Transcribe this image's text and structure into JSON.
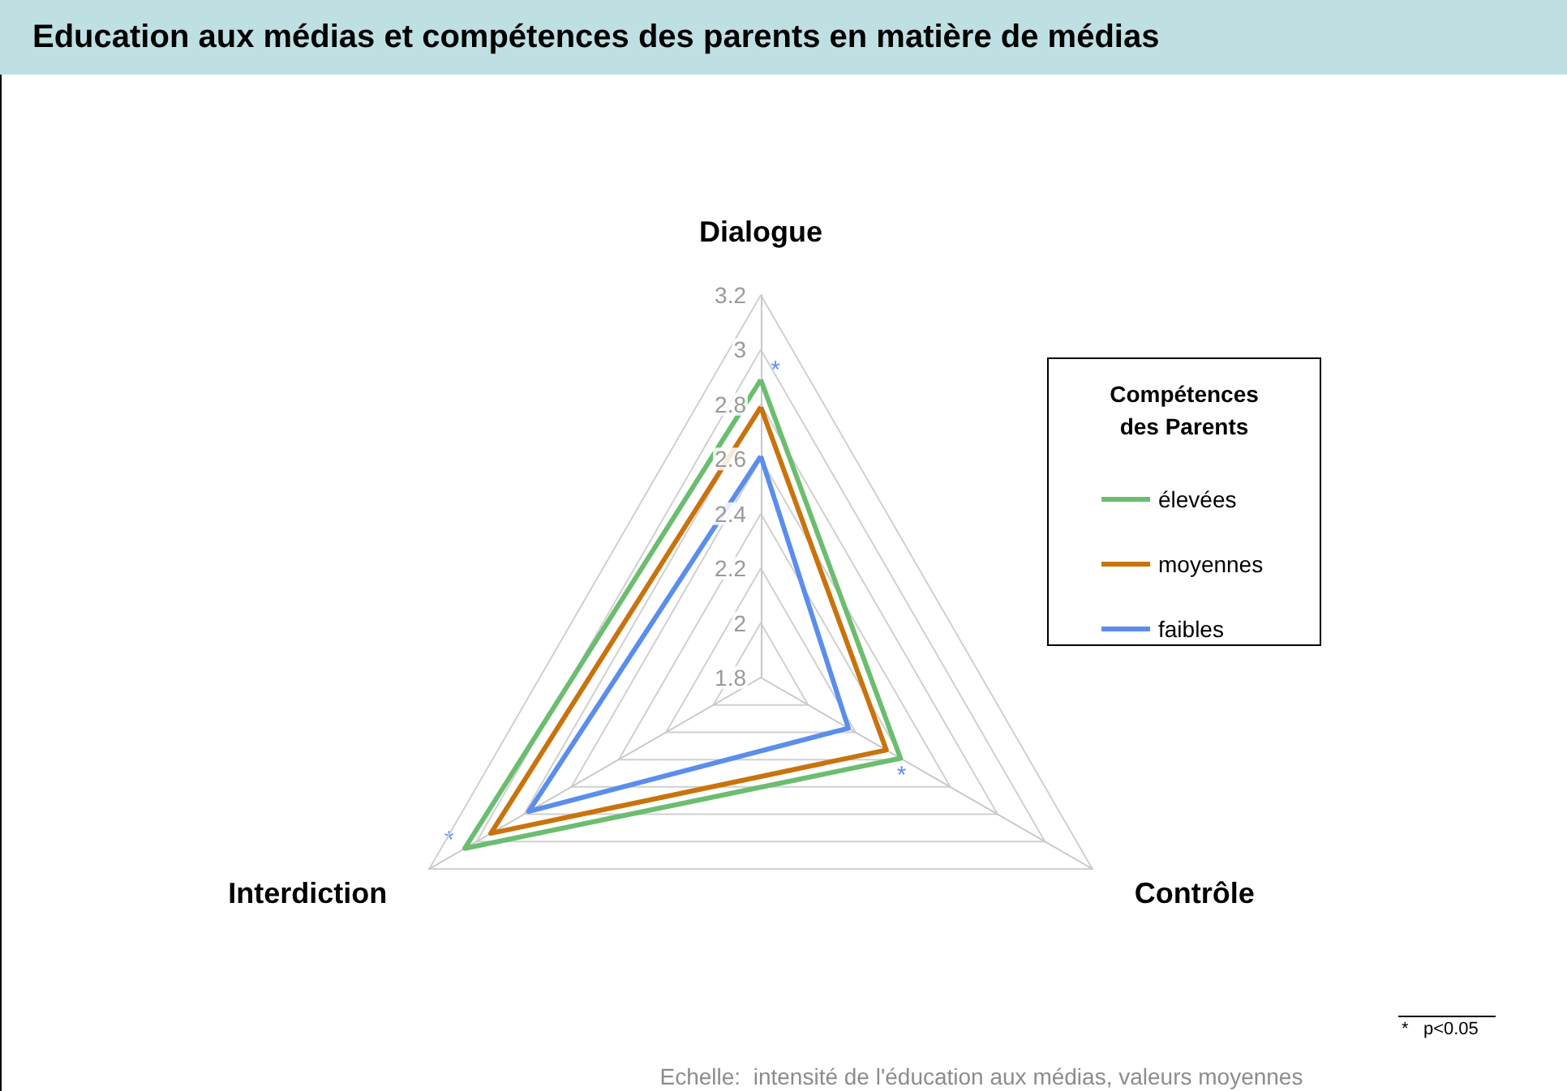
{
  "chart_data": {
    "type": "radar",
    "title": "Education aux médias et compétences des parents en matière de médias",
    "categories": [
      "Dialogue",
      "Contrôle",
      "Interdiction"
    ],
    "series": [
      {
        "name": "élevées",
        "color": "#6bbd6f",
        "values": [
          2.89,
          2.39,
          3.05
        ]
      },
      {
        "name": "moyennes",
        "color": "#c9730d",
        "values": [
          2.79,
          2.33,
          2.94
        ]
      },
      {
        "name": "faibles",
        "color": "#5b8ded",
        "values": [
          2.61,
          2.17,
          2.78
        ]
      }
    ],
    "ylim": [
      1.8,
      3.2
    ],
    "yticks": [
      1.8,
      2,
      2.2,
      2.4,
      2.6,
      2.8,
      3,
      3.2
    ],
    "legend_title": "Compétences des Parents",
    "legend": "right",
    "grid": true,
    "marker": "none",
    "line_style": "solid",
    "annotations": [
      {
        "text": "*",
        "x": "Dialogue"
      },
      {
        "text": "*",
        "x": "Contrôle"
      },
      {
        "text": "*",
        "x": "Interdiction"
      },
      "*   p<0.05",
      "Echelle:  intensité de l'éducation aux médias, valeurs moyennes"
    ]
  }
}
